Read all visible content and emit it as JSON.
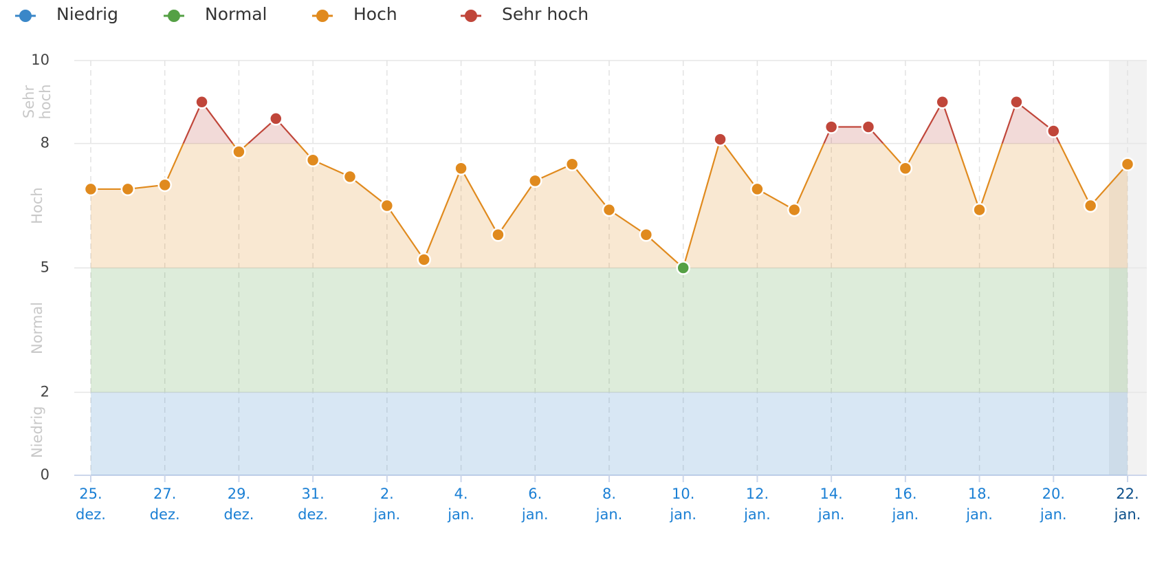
{
  "chart_data": {
    "type": "line",
    "bands": [
      {
        "name": "Niedrig",
        "color": "#3a87c8",
        "from": 0,
        "to": 2
      },
      {
        "name": "Normal",
        "color": "#55a045",
        "from": 2,
        "to": 5
      },
      {
        "name": "Hoch",
        "color": "#e08a1e",
        "from": 5,
        "to": 8
      },
      {
        "name": "Sehr hoch",
        "color": "#c0463a",
        "from": 8,
        "to": 10
      }
    ],
    "categories": [
      "25. dez.",
      null,
      "27. dez.",
      null,
      "29. dez.",
      null,
      "31. dez.",
      null,
      "2. jan.",
      null,
      "4. jan.",
      null,
      "6. jan.",
      null,
      "8. jan.",
      null,
      "10. jan.",
      null,
      "12. jan.",
      null,
      "14. jan.",
      null,
      "16. jan.",
      null,
      "18. jan.",
      null,
      "20. jan.",
      null,
      "22. jan."
    ],
    "values": [
      6.9,
      6.9,
      7.0,
      9.0,
      7.8,
      8.6,
      7.6,
      7.2,
      6.5,
      5.2,
      7.4,
      5.8,
      7.1,
      7.5,
      6.4,
      5.8,
      5.0,
      8.1,
      6.9,
      6.4,
      8.4,
      8.4,
      7.4,
      9.0,
      6.4,
      9.0,
      8.3,
      6.5,
      7.5
    ],
    "ylim": [
      0,
      10
    ],
    "yticks": [
      0,
      2,
      5,
      8,
      10
    ],
    "grid": true
  }
}
